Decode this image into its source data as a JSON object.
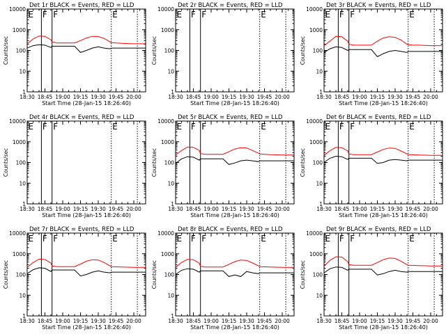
{
  "chart_data": {
    "type": "line",
    "grid_rows": 3,
    "grid_cols": 3,
    "x_range": [
      "18:30",
      "20:10"
    ],
    "x_ticks": [
      "18:30",
      "18:45",
      "19:00",
      "19:15",
      "19:30",
      "19:45",
      "20:00"
    ],
    "y_scale": "log",
    "ylim": [
      1,
      10000
    ],
    "y_tick_values": [
      1,
      10,
      100,
      1000,
      10000
    ],
    "y_tick_labels": [
      "1",
      "10",
      "100",
      "1000",
      "10000"
    ],
    "xlabel": "Start Time (28-Jan-15 18:26:40)",
    "ylabel": "Counts/sec",
    "colors": {
      "events": "#000000",
      "lld": "#ff0000",
      "axes": "#000000"
    },
    "markers": [
      {
        "label": "E",
        "time": "18:30",
        "style": "solid"
      },
      {
        "label": "F",
        "time": "18:42",
        "style": "solid"
      },
      {
        "label": "F",
        "time": "18:51",
        "style": "solid"
      },
      {
        "label": "E",
        "time": "19:41",
        "style": "dotted"
      },
      {
        "label": "",
        "time": "20:03",
        "style": "dotted"
      }
    ],
    "sample_times": [
      "18:30",
      "18:35",
      "18:40",
      "18:45",
      "18:50",
      "18:51",
      "18:55",
      "19:00",
      "19:05",
      "19:10",
      "19:15",
      "19:20",
      "19:25",
      "19:30",
      "19:35",
      "19:40",
      "19:41",
      "19:45",
      "19:50",
      "19:55",
      "20:00",
      "20:05",
      "20:10"
    ],
    "panels": [
      {
        "title": "Det 1r BLACK = Events, RED = LLD",
        "events": [
          130,
          170,
          190,
          180,
          140,
          160,
          160,
          160,
          160,
          160,
          80,
          100,
          130,
          150,
          130,
          120,
          130,
          130,
          130,
          130,
          130,
          130,
          130
        ],
        "lld": [
          210,
          360,
          500,
          480,
          330,
          260,
          230,
          230,
          230,
          230,
          300,
          400,
          480,
          470,
          380,
          260,
          240,
          230,
          220,
          215,
          210,
          210,
          210
        ]
      },
      {
        "title": "Det 2r BLACK = Events, RED = LLD",
        "events": [],
        "lld": []
      },
      {
        "title": "Det 3r BLACK = Events, RED = LLD",
        "events": [
          80,
          120,
          150,
          140,
          100,
          110,
          110,
          110,
          110,
          110,
          50,
          70,
          90,
          100,
          90,
          80,
          90,
          90,
          90,
          90,
          90,
          90,
          90
        ],
        "lld": [
          170,
          280,
          480,
          460,
          280,
          200,
          180,
          180,
          180,
          180,
          280,
          400,
          460,
          430,
          320,
          200,
          190,
          180,
          180,
          175,
          170,
          170,
          170
        ]
      },
      {
        "title": "Det 4r BLACK = Events, RED = LLD",
        "events": [],
        "lld": []
      },
      {
        "title": "Det 5r BLACK = Events, RED = LLD",
        "events": [
          90,
          150,
          190,
          180,
          130,
          150,
          150,
          150,
          150,
          150,
          80,
          95,
          120,
          130,
          120,
          110,
          120,
          120,
          120,
          120,
          120,
          120,
          120
        ],
        "lld": [
          230,
          380,
          560,
          540,
          380,
          270,
          250,
          250,
          250,
          250,
          330,
          450,
          520,
          500,
          380,
          280,
          260,
          250,
          240,
          235,
          230,
          230,
          230
        ]
      },
      {
        "title": "Det 6r BLACK = Events, RED = LLD",
        "events": [
          100,
          160,
          200,
          190,
          140,
          160,
          160,
          160,
          160,
          160,
          90,
          100,
          130,
          140,
          130,
          120,
          130,
          130,
          130,
          130,
          130,
          130,
          130
        ],
        "lld": [
          220,
          370,
          540,
          520,
          360,
          260,
          240,
          240,
          240,
          240,
          320,
          430,
          500,
          480,
          360,
          260,
          240,
          235,
          230,
          225,
          220,
          220,
          220
        ]
      },
      {
        "title": "Det 7r BLACK = Events, RED = LLD",
        "events": [
          110,
          170,
          210,
          200,
          140,
          165,
          165,
          165,
          165,
          165,
          85,
          100,
          130,
          150,
          130,
          120,
          130,
          130,
          130,
          130,
          130,
          130,
          130
        ],
        "lld": [
          220,
          380,
          550,
          530,
          360,
          260,
          240,
          240,
          240,
          240,
          320,
          440,
          520,
          500,
          380,
          260,
          240,
          235,
          230,
          225,
          220,
          220,
          220
        ]
      },
      {
        "title": "Det 8r BLACK = Events, RED = LLD",
        "events": [
          100,
          160,
          190,
          180,
          130,
          150,
          150,
          150,
          150,
          150,
          80,
          95,
          80,
          140,
          120,
          110,
          120,
          120,
          120,
          120,
          120,
          120,
          120
        ],
        "lld": [
          220,
          380,
          540,
          520,
          350,
          250,
          230,
          230,
          230,
          230,
          310,
          420,
          500,
          480,
          360,
          260,
          240,
          235,
          230,
          225,
          220,
          220,
          220
        ]
      },
      {
        "title": "Det 9r BLACK = Events, RED = LLD",
        "events": [
          120,
          190,
          230,
          220,
          160,
          180,
          180,
          180,
          180,
          180,
          95,
          110,
          140,
          160,
          140,
          130,
          140,
          140,
          140,
          140,
          140,
          140,
          140
        ],
        "lld": [
          250,
          480,
          720,
          700,
          420,
          300,
          280,
          280,
          280,
          280,
          380,
          520,
          620,
          600,
          440,
          300,
          280,
          275,
          270,
          265,
          260,
          260,
          260
        ]
      }
    ]
  }
}
